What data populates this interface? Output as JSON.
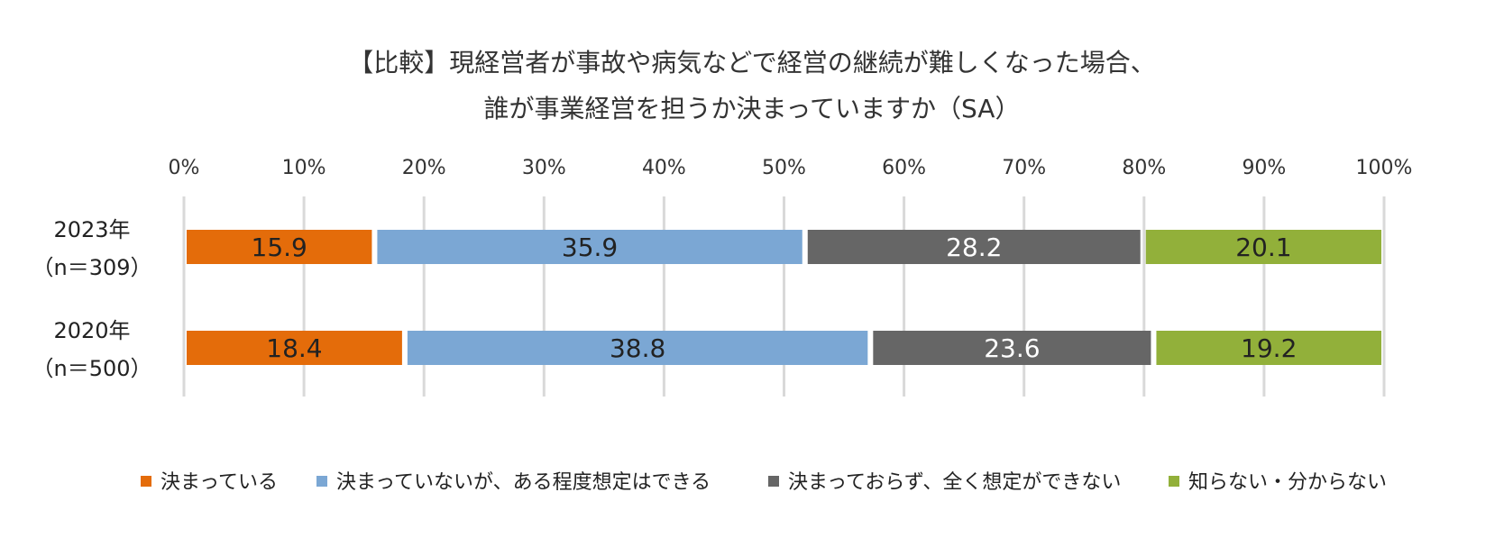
{
  "chart_data": {
    "type": "bar",
    "orientation": "horizontal",
    "stacked": "percent",
    "title": [
      "【比較】現経営者が事故や病気などで経営の継続が難しくなった場合、",
      "誰が事業経営を担うか決まっていますか（SA）"
    ],
    "x_ticks": [
      "0%",
      "10%",
      "20%",
      "30%",
      "40%",
      "50%",
      "60%",
      "70%",
      "80%",
      "90%",
      "100%"
    ],
    "xlim": [
      0,
      100
    ],
    "grid": true,
    "legend_position": "bottom",
    "categories": [
      {
        "line1": "2023年",
        "line2": "（n＝309）"
      },
      {
        "line1": "2020年",
        "line2": "（n＝500）"
      }
    ],
    "series": [
      {
        "name": "決まっている",
        "color": "#E46C0A",
        "label_color": "#222222",
        "values": [
          15.9,
          18.4
        ]
      },
      {
        "name": "決まっていないが、ある程度想定はできる",
        "color": "#7BA7D4",
        "label_color": "#222222",
        "values": [
          35.9,
          38.8
        ]
      },
      {
        "name": "決まっておらず、全く想定ができない",
        "color": "#666666",
        "label_color": "#FFFFFF",
        "values": [
          28.2,
          23.6
        ]
      },
      {
        "name": "知らない・分からない",
        "color": "#92B03A",
        "label_color": "#222222",
        "values": [
          20.1,
          19.2
        ]
      }
    ],
    "value_labels": [
      [
        "15.9",
        "35.9",
        "28.2",
        "20.1"
      ],
      [
        "18.4",
        "38.8",
        "23.6",
        "19.2"
      ]
    ]
  }
}
